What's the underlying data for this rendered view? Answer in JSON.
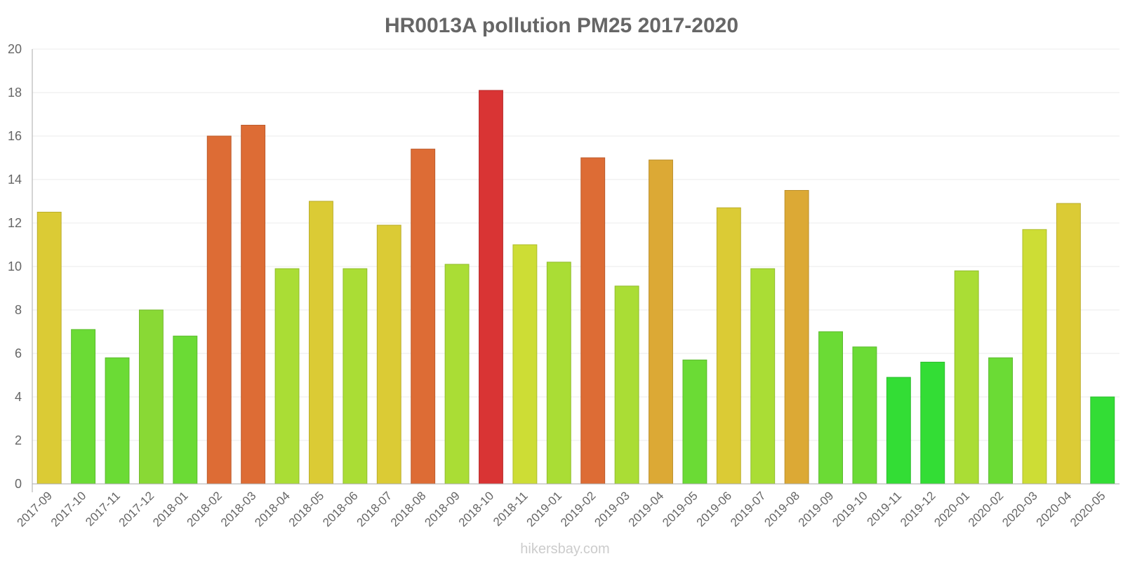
{
  "chart_data": {
    "type": "bar",
    "title": "HR0013A pollution PM25 2017-2020",
    "xlabel": "",
    "ylabel": "",
    "ylim": [
      0,
      20
    ],
    "yticks": [
      0,
      2,
      4,
      6,
      8,
      10,
      12,
      14,
      16,
      18,
      20
    ],
    "categories": [
      "2017-09",
      "2017-10",
      "2017-11",
      "2017-12",
      "2018-01",
      "2018-02",
      "2018-03",
      "2018-04",
      "2018-05",
      "2018-06",
      "2018-07",
      "2018-08",
      "2018-09",
      "2018-10",
      "2018-11",
      "2019-01",
      "2019-02",
      "2019-03",
      "2019-04",
      "2019-05",
      "2019-06",
      "2019-07",
      "2019-08",
      "2019-09",
      "2019-10",
      "2019-11",
      "2019-12",
      "2020-01",
      "2020-02",
      "2020-03",
      "2020-04",
      "2020-05"
    ],
    "values": [
      12.5,
      7.1,
      5.8,
      8.0,
      6.8,
      16.0,
      16.5,
      9.9,
      13.0,
      9.9,
      11.9,
      15.4,
      10.1,
      18.1,
      11.0,
      10.2,
      15.0,
      9.1,
      14.9,
      5.7,
      12.7,
      9.9,
      13.5,
      7.0,
      6.3,
      4.9,
      5.6,
      9.8,
      5.8,
      11.7,
      12.9,
      4.0
    ],
    "colors": [
      "#dbcb35",
      "#6bdb35",
      "#6bdb35",
      "#89d935",
      "#6bdb35",
      "#dd6c35",
      "#dd6c35",
      "#aadd35",
      "#dbcb35",
      "#aadd35",
      "#dbcb35",
      "#dd6c35",
      "#aadd35",
      "#d93434",
      "#cddd35",
      "#aadd35",
      "#dd6c35",
      "#aadd35",
      "#dca935",
      "#6bdb35",
      "#dbcb35",
      "#aadd35",
      "#dca935",
      "#6bdb35",
      "#6bdb35",
      "#33dd35",
      "#33dd35",
      "#aadd35",
      "#6bdb35",
      "#cddd35",
      "#dbcb35",
      "#33dd35"
    ],
    "grid": true,
    "legend": "none"
  },
  "watermark": "hikersbay.com"
}
